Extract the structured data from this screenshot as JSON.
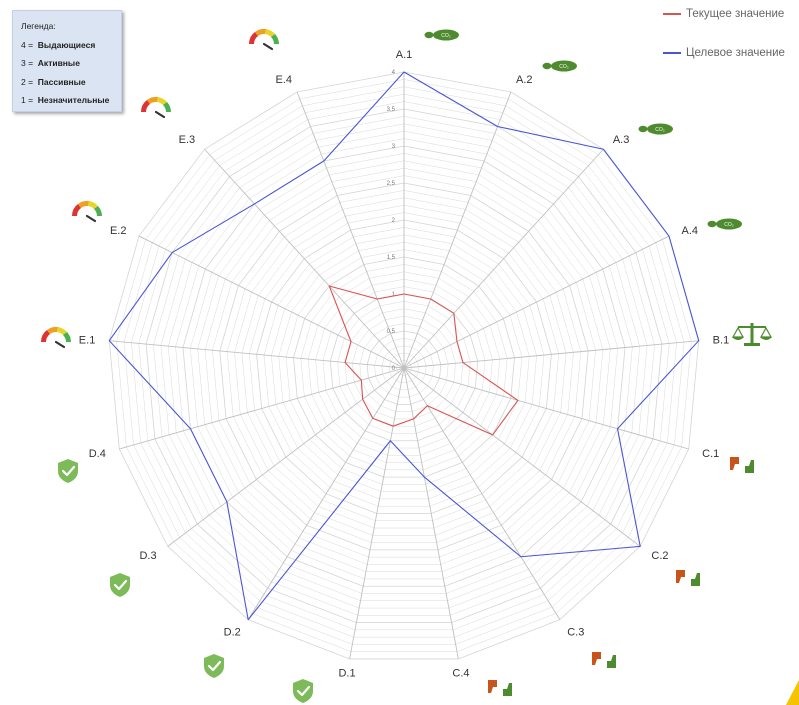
{
  "legend": {
    "title": "Легенда:",
    "items": [
      {
        "key": "4 =",
        "label": "Выдающиеся"
      },
      {
        "key": "3 =",
        "label": "Активные"
      },
      {
        "key": "2 =",
        "label": "Пассивные"
      },
      {
        "key": "1 =",
        "label": "Незначительные"
      }
    ]
  },
  "colors": {
    "current": "#d9534f",
    "target": "#4a55d6",
    "grid": "#d4d4d4",
    "spoke": "#c0c0c0",
    "icon_green": "#4e8a2e",
    "icon_orange": "#c7541a",
    "shield": "#7dbb5a"
  },
  "chart_data": {
    "type": "radar",
    "categories": [
      "A.1",
      "A.2",
      "A.3",
      "A.4",
      "B.1",
      "C.1",
      "C.2",
      "C.3",
      "C.4",
      "D.1",
      "D.2",
      "D.3",
      "D.4",
      "E.1",
      "E.2",
      "E.3",
      "E.4"
    ],
    "rmin": 0,
    "rmax": 4,
    "tick_labels": [
      "0",
      "0.5",
      "1",
      "1.5",
      "2",
      "2.5",
      "3",
      "3.5",
      "4"
    ],
    "grid": true,
    "legend_position": "top-right",
    "series": [
      {
        "name": "Текущее значение",
        "values": [
          1,
          1,
          1,
          0.8,
          0.8,
          1.6,
          1.5,
          0.6,
          0.7,
          0.8,
          0.8,
          0.7,
          0.6,
          0.8,
          0.8,
          1.5,
          1
        ]
      },
      {
        "name": "Целевое значение",
        "values": [
          4,
          3.5,
          4,
          4,
          4,
          3,
          4,
          3,
          1.5,
          1,
          4,
          3,
          3,
          4,
          3.5,
          3,
          3
        ]
      }
    ]
  },
  "axis_icons": [
    "co2-footprint-icon",
    "co2-footprint-icon",
    "co2-footprint-icon",
    "co2-footprint-icon",
    "scales-icon",
    "thumbs-up-down-icon",
    "thumbs-up-down-icon",
    "thumbs-up-down-icon",
    "thumbs-up-down-icon",
    "shield-check-icon",
    "shield-check-icon",
    "shield-check-icon",
    "shield-check-icon",
    "gauge-icon",
    "gauge-icon",
    "gauge-icon",
    "gauge-icon"
  ]
}
